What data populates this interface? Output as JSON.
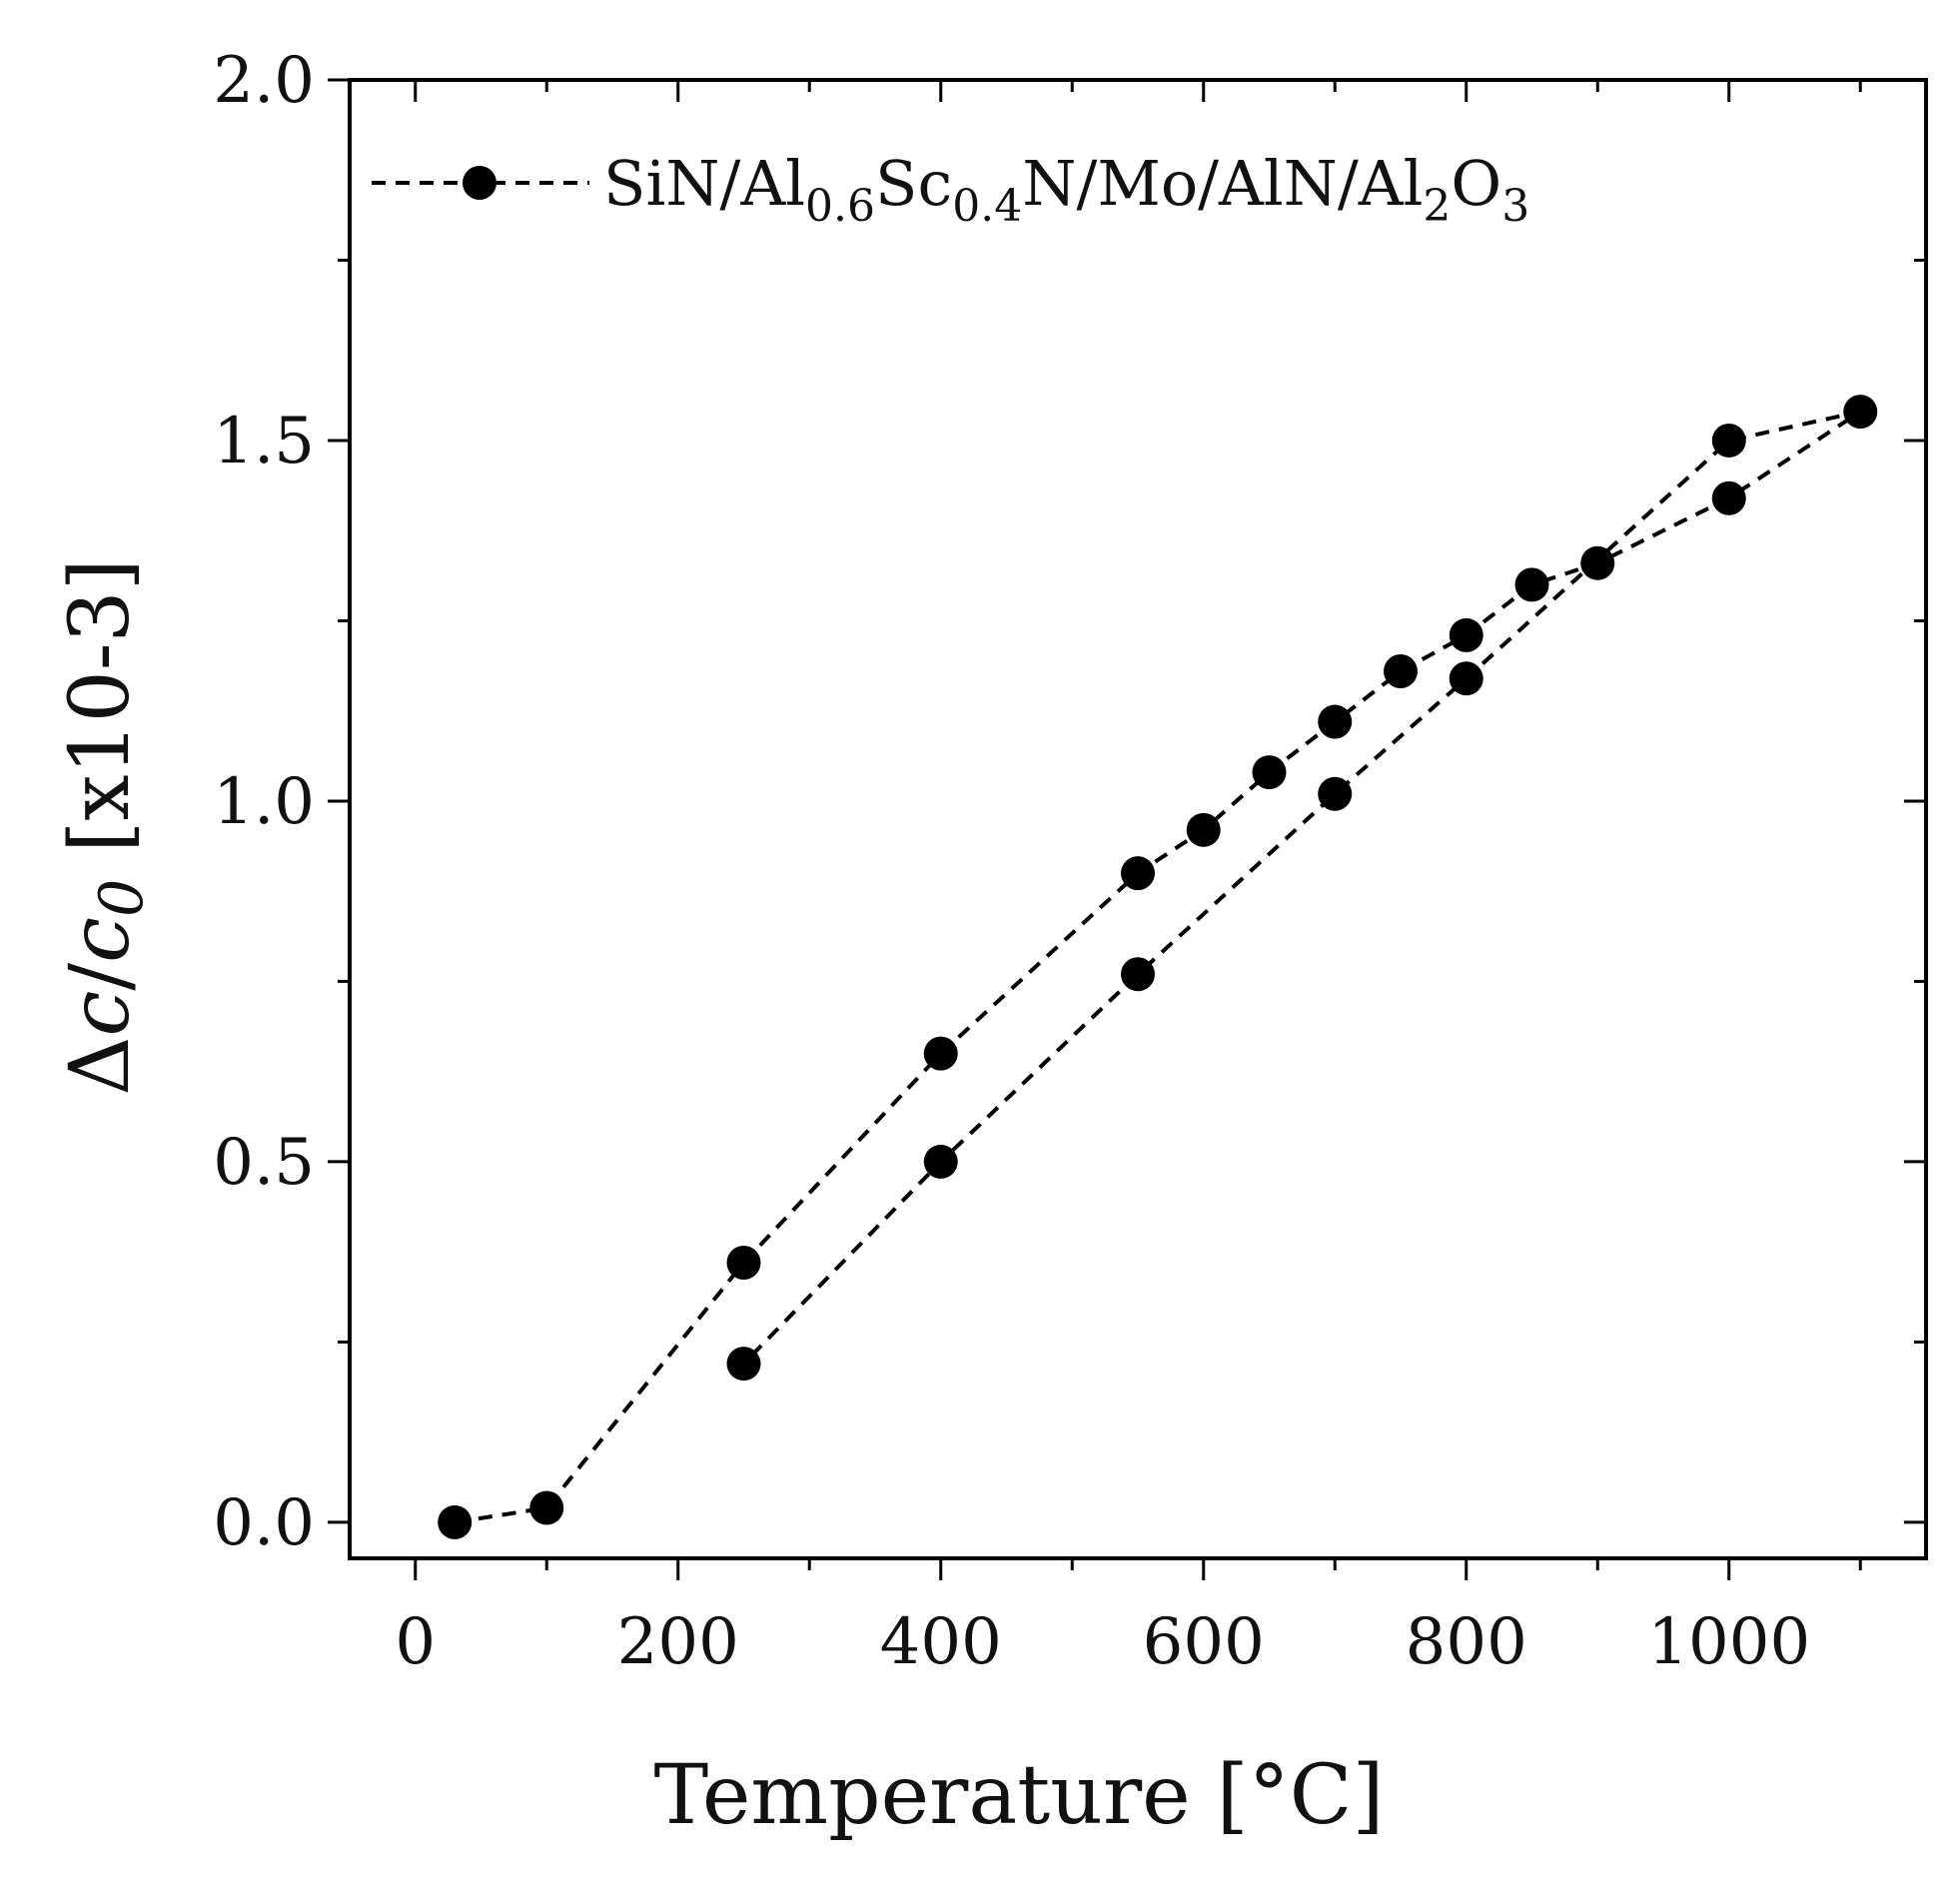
{
  "chart_data": {
    "type": "line",
    "title": "",
    "xlabel": "Temperature [°C]",
    "ylabel": {
      "delta": "Δ",
      "c": "c",
      "slash": "/",
      "c0": "c",
      "zero": "0",
      "unit": " [x10-3]"
    },
    "xlim": [
      -50,
      1150
    ],
    "ylim": [
      -0.05,
      2.0
    ],
    "x_ticks": [
      0,
      200,
      400,
      600,
      800,
      1000
    ],
    "x_tick_labels": [
      "0",
      "200",
      "400",
      "600",
      "800",
      "1000"
    ],
    "x_minor_ticks": [
      100,
      300,
      500,
      700,
      900,
      1100
    ],
    "y_ticks": [
      0.0,
      0.5,
      1.0,
      1.5,
      2.0
    ],
    "y_tick_labels": [
      "0.0",
      "0.5",
      "1.0",
      "1.5",
      "2.0"
    ],
    "y_minor_ticks": [
      0.25,
      0.75,
      1.25,
      1.75
    ],
    "grid": false,
    "legend_position": "top-left",
    "legend": {
      "parts": [
        {
          "text": "SiN/Al",
          "sub": false
        },
        {
          "text": "0.6",
          "sub": true
        },
        {
          "text": "Sc",
          "sub": false
        },
        {
          "text": "0.4",
          "sub": true
        },
        {
          "text": "N/Mo/AlN/Al",
          "sub": false
        },
        {
          "text": "2",
          "sub": true
        },
        {
          "text": "O",
          "sub": false
        },
        {
          "text": "3",
          "sub": true
        }
      ]
    },
    "series": [
      {
        "name": "SiN/Al0.6Sc0.4N/Mo/AlN/Al2O3",
        "style": "dashed",
        "marker": "circle",
        "color": "#000000",
        "x": [
          30,
          100,
          250,
          400,
          550,
          600,
          650,
          700,
          750,
          800,
          850,
          900,
          1000,
          1100,
          1000,
          800,
          700,
          550,
          400,
          250
        ],
        "y": [
          0.0,
          0.02,
          0.36,
          0.65,
          0.9,
          0.96,
          1.04,
          1.11,
          1.18,
          1.23,
          1.3,
          1.33,
          1.42,
          1.54,
          1.5,
          1.17,
          1.01,
          0.76,
          0.5,
          0.22
        ]
      }
    ]
  }
}
